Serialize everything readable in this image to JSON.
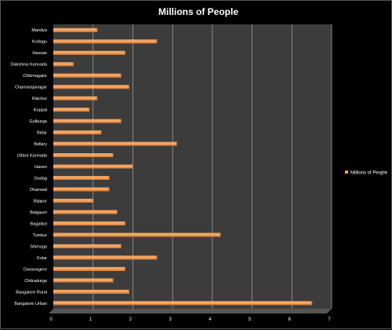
{
  "chart_data": {
    "type": "bar",
    "orientation": "horizontal",
    "title": "Millions of People",
    "categories": [
      "Mandya",
      "Kodagu",
      "Hassan",
      "Dakshina Kannada",
      "Chikmagalur",
      "Chamarajanagar",
      "Raichur",
      "Koppal",
      "Gulburga",
      "Bidar",
      "Bellary",
      "Uttara Kannada",
      "Haveri",
      "Gadag",
      "Dharwad",
      "Bijapur",
      "Belgaum",
      "Bagalkot",
      "Tumkur",
      "Shimoga",
      "Kolar",
      "Davanagere",
      "Chitradurga",
      "Bangalore Rural",
      "Bangalore Urban"
    ],
    "series": [
      {
        "name": "Millions of People",
        "values": [
          1.1,
          2.6,
          1.8,
          0.5,
          1.7,
          1.9,
          1.1,
          0.9,
          1.7,
          1.2,
          3.1,
          1.5,
          2.0,
          1.4,
          1.4,
          1.0,
          1.6,
          1.8,
          4.2,
          1.7,
          2.6,
          1.8,
          1.5,
          1.9,
          6.5
        ]
      }
    ],
    "xticks": [
      "0",
      "1",
      "2",
      "3",
      "4",
      "5",
      "6",
      "7"
    ],
    "xlim": [
      0,
      7
    ],
    "grid": true,
    "legend": "right",
    "colors": {
      "bar": "#f4a460",
      "bar_dark": "#c97a3c",
      "plot_back": "#3c3c3c",
      "plot_floor": "#555555",
      "grid": "#9a9a9a",
      "background": "#000000",
      "text": "#ffffff"
    }
  }
}
